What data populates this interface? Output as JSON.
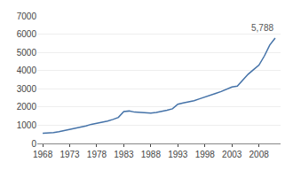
{
  "chart_data": {
    "type": "line",
    "x": [
      1968,
      1969,
      1970,
      1971,
      1972,
      1973,
      1974,
      1975,
      1976,
      1977,
      1978,
      1979,
      1980,
      1981,
      1982,
      1983,
      1984,
      1985,
      1986,
      1987,
      1988,
      1989,
      1990,
      1991,
      1992,
      1993,
      1994,
      1995,
      1996,
      1997,
      1998,
      1999,
      2000,
      2001,
      2002,
      2003,
      2004,
      2005,
      2006,
      2007,
      2008,
      2009,
      2010,
      2011
    ],
    "values": [
      560,
      570,
      590,
      640,
      700,
      780,
      840,
      900,
      960,
      1050,
      1100,
      1150,
      1230,
      1320,
      1430,
      1750,
      1780,
      1720,
      1700,
      1680,
      1660,
      1700,
      1750,
      1820,
      1900,
      2150,
      2220,
      2280,
      2350,
      2450,
      2560,
      2650,
      2750,
      2850,
      2980,
      3100,
      3150,
      3500,
      3800,
      4050,
      4300,
      4800,
      5400,
      5788
    ],
    "color": "#4472a8",
    "xlim": [
      1967,
      2012
    ],
    "xticks": [
      1968,
      1973,
      1978,
      1983,
      1988,
      1993,
      1998,
      2003,
      2008
    ],
    "ylim": [
      0,
      7000
    ],
    "yticks": [
      0,
      1000,
      2000,
      3000,
      4000,
      5000,
      6000,
      7000
    ],
    "grid": true,
    "annotation": "5,788"
  }
}
